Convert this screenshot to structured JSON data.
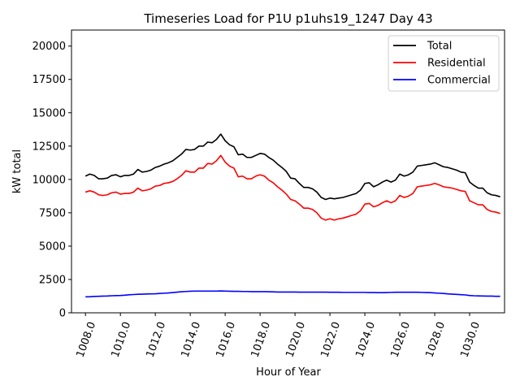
{
  "chart_data": {
    "type": "line",
    "title": "Timeseries Load for P1U p1uhs19_1247  Day 43",
    "xlabel": "Hour of Year",
    "ylabel": "kW total",
    "xlim": [
      1007.2,
      1032.0
    ],
    "ylim": [
      0,
      21200
    ],
    "x_ticks": [
      1008,
      1010,
      1012,
      1014,
      1016,
      1018,
      1020,
      1022,
      1024,
      1026,
      1028,
      1030
    ],
    "x_tick_labels": [
      "1008.0",
      "1010.0",
      "1012.0",
      "1014.0",
      "1016.0",
      "1018.0",
      "1020.0",
      "1022.0",
      "1024.0",
      "1026.0",
      "1028.0",
      "1030.0"
    ],
    "y_ticks": [
      0,
      2500,
      5000,
      7500,
      10000,
      12500,
      15000,
      17500,
      20000
    ],
    "y_tick_labels": [
      "0",
      "2500",
      "5000",
      "7500",
      "10000",
      "12500",
      "15000",
      "17500",
      "20000"
    ],
    "legend_position": "top-right",
    "x": [
      1008.0,
      1008.25,
      1008.5,
      1008.75,
      1009.0,
      1009.25,
      1009.5,
      1009.75,
      1010.0,
      1010.25,
      1010.5,
      1010.75,
      1011.0,
      1011.25,
      1011.5,
      1011.75,
      1012.0,
      1012.25,
      1012.5,
      1012.75,
      1013.0,
      1013.25,
      1013.5,
      1013.75,
      1014.0,
      1014.25,
      1014.5,
      1014.75,
      1015.0,
      1015.25,
      1015.5,
      1015.75,
      1016.0,
      1016.25,
      1016.5,
      1016.75,
      1017.0,
      1017.25,
      1017.5,
      1017.75,
      1018.0,
      1018.25,
      1018.5,
      1018.75,
      1019.0,
      1019.25,
      1019.5,
      1019.75,
      1020.0,
      1020.25,
      1020.5,
      1020.75,
      1021.0,
      1021.25,
      1021.5,
      1021.75,
      1022.0,
      1022.25,
      1022.5,
      1022.75,
      1023.0,
      1023.25,
      1023.5,
      1023.75,
      1024.0,
      1024.25,
      1024.5,
      1024.75,
      1025.0,
      1025.25,
      1025.5,
      1025.75,
      1026.0,
      1026.25,
      1026.5,
      1026.75,
      1027.0,
      1027.25,
      1027.5,
      1027.75,
      1028.0,
      1028.25,
      1028.5,
      1028.75,
      1029.0,
      1029.25,
      1029.5,
      1029.75,
      1030.0,
      1030.25,
      1030.5,
      1030.75,
      1031.0,
      1031.25,
      1031.5,
      1031.75
    ],
    "series": [
      {
        "name": "Total",
        "color": "#000000",
        "values": [
          10250,
          10400,
          10300,
          10050,
          10050,
          10100,
          10300,
          10350,
          10200,
          10300,
          10300,
          10400,
          10750,
          10550,
          10600,
          10700,
          10900,
          11000,
          11150,
          11250,
          11400,
          11650,
          11900,
          12250,
          12200,
          12250,
          12500,
          12500,
          12800,
          12750,
          13000,
          13400,
          12900,
          12600,
          12450,
          11850,
          11900,
          11650,
          11650,
          11800,
          11950,
          11900,
          11650,
          11450,
          11150,
          10900,
          10600,
          10100,
          10050,
          9700,
          9400,
          9400,
          9300,
          9050,
          8650,
          8500,
          8600,
          8550,
          8600,
          8650,
          8750,
          8850,
          8950,
          9200,
          9700,
          9750,
          9450,
          9600,
          9800,
          9950,
          9800,
          9950,
          10400,
          10250,
          10350,
          10550,
          11000,
          11050,
          11100,
          11150,
          11250,
          11100,
          10950,
          10900,
          10800,
          10700,
          10550,
          10500,
          9800,
          9550,
          9350,
          9350,
          9000,
          8850,
          8800,
          8700
        ]
      },
      {
        "name": "Residential",
        "color": "#ff0000",
        "values": [
          9050,
          9150,
          9050,
          8850,
          8800,
          8850,
          9000,
          9050,
          8900,
          8950,
          8950,
          9050,
          9350,
          9150,
          9200,
          9300,
          9500,
          9550,
          9700,
          9750,
          9850,
          10050,
          10300,
          10650,
          10550,
          10550,
          10850,
          10850,
          11200,
          11150,
          11400,
          11800,
          11300,
          11000,
          10850,
          10200,
          10250,
          10050,
          10050,
          10250,
          10350,
          10250,
          9950,
          9750,
          9450,
          9200,
          8900,
          8500,
          8400,
          8150,
          7850,
          7850,
          7750,
          7500,
          7100,
          6950,
          7050,
          6950,
          7050,
          7100,
          7200,
          7300,
          7400,
          7650,
          8150,
          8200,
          7950,
          8050,
          8250,
          8400,
          8250,
          8400,
          8800,
          8650,
          8750,
          8950,
          9450,
          9500,
          9550,
          9600,
          9700,
          9600,
          9450,
          9400,
          9350,
          9250,
          9150,
          9100,
          8400,
          8250,
          8100,
          8100,
          7750,
          7600,
          7550,
          7450
        ]
      },
      {
        "name": "Commercial",
        "color": "#0000ff",
        "values": [
          1200,
          1210,
          1230,
          1240,
          1250,
          1260,
          1280,
          1290,
          1300,
          1320,
          1350,
          1370,
          1390,
          1400,
          1410,
          1420,
          1430,
          1450,
          1470,
          1490,
          1520,
          1550,
          1580,
          1600,
          1620,
          1630,
          1630,
          1630,
          1630,
          1630,
          1630,
          1640,
          1630,
          1620,
          1610,
          1610,
          1600,
          1600,
          1590,
          1590,
          1590,
          1590,
          1580,
          1570,
          1560,
          1560,
          1560,
          1560,
          1560,
          1550,
          1550,
          1550,
          1550,
          1550,
          1550,
          1550,
          1540,
          1540,
          1540,
          1530,
          1530,
          1530,
          1530,
          1530,
          1530,
          1520,
          1520,
          1510,
          1510,
          1520,
          1530,
          1540,
          1540,
          1540,
          1540,
          1540,
          1540,
          1530,
          1520,
          1510,
          1490,
          1470,
          1450,
          1420,
          1400,
          1380,
          1360,
          1340,
          1300,
          1280,
          1270,
          1260,
          1250,
          1250,
          1240,
          1240
        ]
      }
    ]
  }
}
